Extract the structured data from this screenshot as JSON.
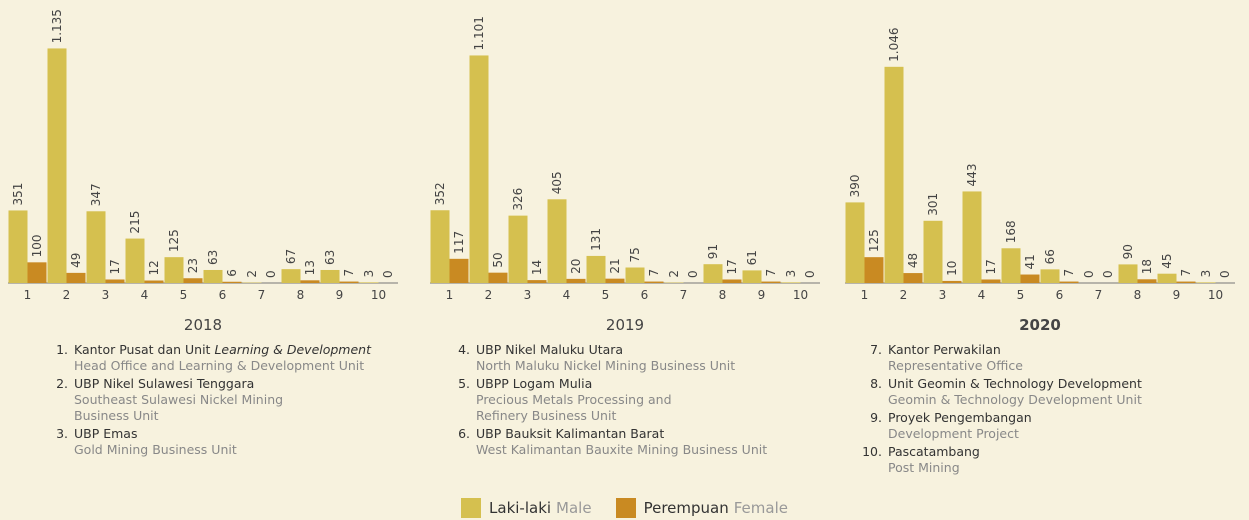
{
  "chart_data": [
    {
      "type": "bar",
      "title": "2018",
      "categories": [
        "1",
        "2",
        "3",
        "4",
        "5",
        "6",
        "7",
        "8",
        "9",
        "10"
      ],
      "ylim": [
        0,
        1200
      ],
      "series": [
        {
          "color": "#d5c04f",
          "values": [
            351,
            1135,
            347,
            215,
            125,
            63,
            2,
            67,
            63,
            3
          ],
          "value_labels": [
            "351",
            "1.135",
            "347",
            "215",
            "125",
            "63",
            "2",
            "67",
            "63",
            "3"
          ]
        },
        {
          "color": "#c98a22",
          "values": [
            100,
            49,
            17,
            12,
            23,
            6,
            0,
            13,
            7,
            0
          ]
        }
      ]
    },
    {
      "type": "bar",
      "title": "2019",
      "categories": [
        "1",
        "2",
        "3",
        "4",
        "5",
        "6",
        "7",
        "8",
        "9",
        "10"
      ],
      "ylim": [
        0,
        1200
      ],
      "series": [
        {
          "color": "#d5c04f",
          "values": [
            352,
            1101,
            326,
            405,
            131,
            75,
            2,
            91,
            61,
            3
          ],
          "value_labels": [
            "352",
            "1.101",
            "326",
            "405",
            "131",
            "75",
            "2",
            "91",
            "61",
            "3"
          ]
        },
        {
          "color": "#c98a22",
          "values": [
            117,
            50,
            14,
            20,
            21,
            7,
            0,
            17,
            7,
            0
          ]
        }
      ]
    },
    {
      "type": "bar",
      "title": "2020",
      "title_weight": "bold",
      "categories": [
        "1",
        "2",
        "3",
        "4",
        "5",
        "6",
        "7",
        "8",
        "9",
        "10"
      ],
      "ylim": [
        0,
        1200
      ],
      "series": [
        {
          "color": "#d5c04f",
          "values": [
            390,
            1046,
            301,
            443,
            168,
            66,
            0,
            90,
            45,
            3
          ],
          "value_labels": [
            "390",
            "1.046",
            "301",
            "443",
            "168",
            "66",
            "0",
            "90",
            "45",
            "3"
          ]
        },
        {
          "color": "#c98a22",
          "values": [
            125,
            48,
            10,
            17,
            41,
            7,
            0,
            18,
            7,
            0
          ]
        }
      ]
    }
  ],
  "legend": [
    {
      "name": "Laki-laki",
      "translation": "Male",
      "color": "#d5c04f"
    },
    {
      "name": "Perempuan",
      "translation": "Female",
      "color": "#c98a22"
    }
  ],
  "notes": [
    [
      {
        "number": "1.",
        "name": "Kantor Pusat dan Unit",
        "name_italic": "Learning & Development",
        "description": "Head Office and Learning & Development Unit"
      },
      {
        "number": "2.",
        "name": "UBP Nikel Sulawesi Tenggara",
        "description": "Southeast Sulawesi Nickel Mining Business Unit"
      },
      {
        "number": "3.",
        "name": "UBP Emas",
        "description": "Gold Mining Business Unit"
      }
    ],
    [
      {
        "number": "4.",
        "name": "UBP Nikel Maluku Utara",
        "description": "North Maluku Nickel Mining Business Unit"
      },
      {
        "number": "5.",
        "name": "UBPP Logam Mulia",
        "description": "Precious Metals Processing and Refinery Business Unit"
      },
      {
        "number": "6.",
        "name": "UBP Bauksit Kalimantan Barat",
        "description": "West Kalimantan Bauxite Mining Business Unit"
      }
    ],
    [
      {
        "number": "7.",
        "name": "Kantor Perwakilan",
        "description": "Representative Office"
      },
      {
        "number": "8.",
        "name": "Unit Geomin & Technology Development",
        "description": "Geomin & Technology Development Unit"
      },
      {
        "number": "9.",
        "name": "Proyek Pengembangan",
        "description": "Development Project"
      },
      {
        "number": "10.",
        "name": "Pascatambang",
        "description": "Post Mining"
      }
    ]
  ]
}
